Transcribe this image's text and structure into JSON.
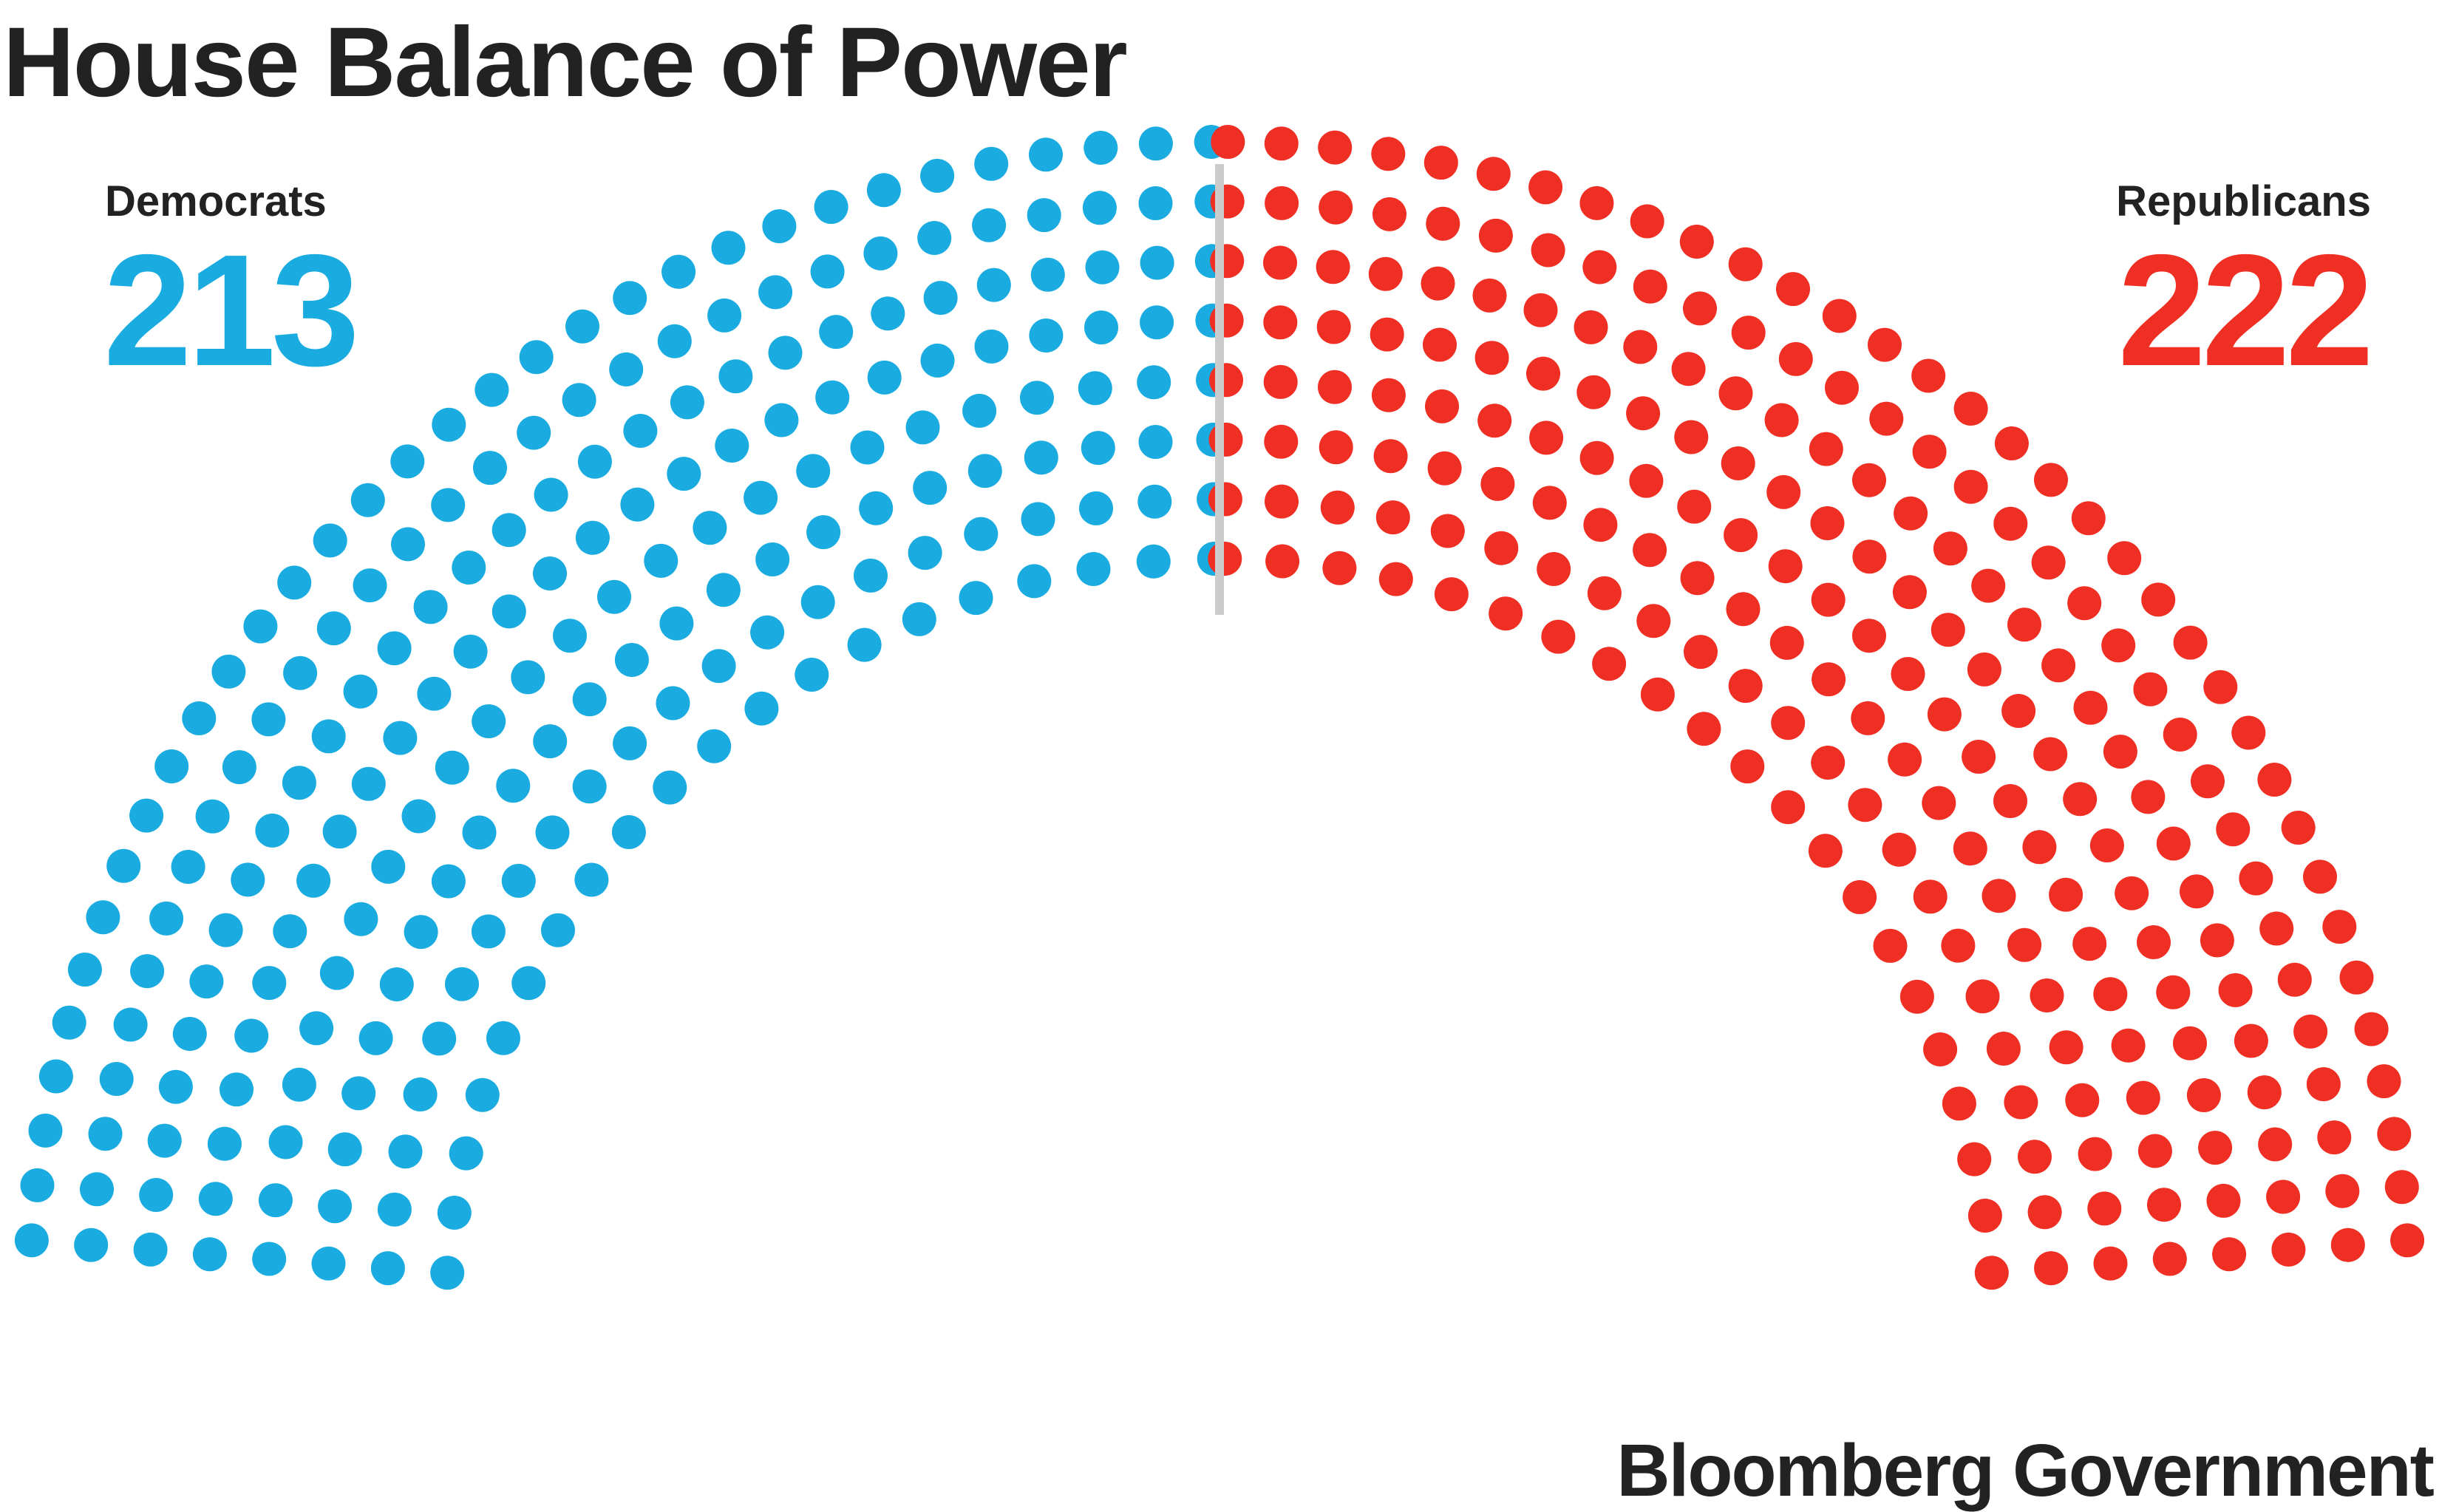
{
  "title": "House Balance of Power",
  "source": "Bloomberg Government",
  "colors": {
    "democrats": "#1aace0",
    "republicans": "#ef2f23",
    "divider": "#cccccc",
    "text": "#222222"
  },
  "chart_data": {
    "type": "hemicycle",
    "title": "House Balance of Power",
    "total_seats": 435,
    "series": [
      {
        "name": "Democrats",
        "value": 213,
        "color": "#1aace0",
        "side": "left"
      },
      {
        "name": "Republicans",
        "value": 222,
        "color": "#ef2f23",
        "side": "right"
      }
    ],
    "labels": {
      "democrats": {
        "name": "Democrats",
        "count": "213"
      },
      "republicans": {
        "name": "Republicans",
        "count": "222"
      }
    }
  }
}
